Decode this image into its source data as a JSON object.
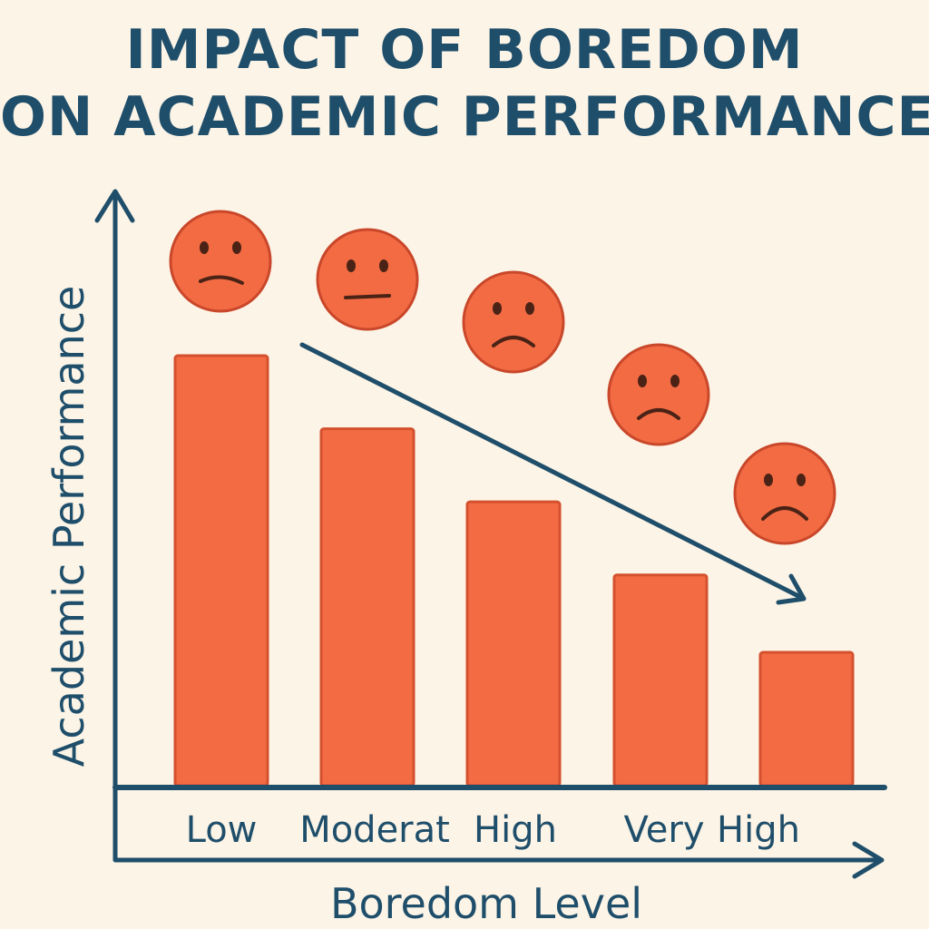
{
  "title_lines": [
    "IMPACT OF BOREDOM",
    "ON ACADEMIC PERFORMANCE"
  ],
  "chart_data": {
    "type": "bar",
    "title": "IMPACT OF BOREDOM ON ACADEMIC PERFORMANCE",
    "xlabel": "Boredom Level",
    "ylabel": "Academic Performance",
    "categories": [
      "Low",
      "Moderat",
      "High",
      "",
      "Very High"
    ],
    "values": [
      100,
      83,
      66,
      49,
      31
    ],
    "ylim": [
      0,
      100
    ],
    "grid": false,
    "trend_arrow": "downward",
    "faces": [
      "slightly sad",
      "neutral",
      "sad",
      "sad",
      "very sad"
    ],
    "colors": {
      "bar": "#f26b43",
      "bar_outline": "#d4502e",
      "face": "#f26b43",
      "face_outline": "#c9472a",
      "axis": "#1f4e6b",
      "text": "#1f4e6b",
      "background": "#fcf4e6"
    }
  }
}
